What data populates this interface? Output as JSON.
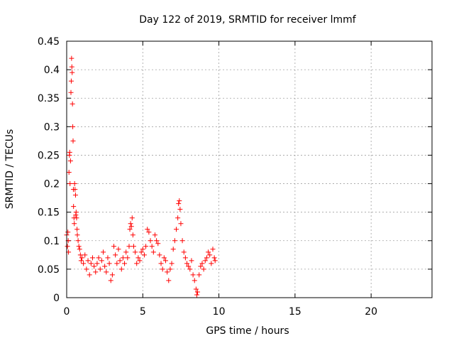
{
  "chart_data": {
    "type": "scatter",
    "title": "Day 122 of 2019, SRMTID for receiver lmmf",
    "xlabel": "GPS time / hours",
    "ylabel": "SRMTID / TECUs",
    "xlim": [
      0,
      24
    ],
    "ylim": [
      0,
      0.45
    ],
    "xticks": [
      0,
      5,
      10,
      15,
      20
    ],
    "xtick_labels": [
      "0",
      "5",
      "10",
      "15",
      "20"
    ],
    "yticks": [
      0,
      0.05,
      0.1,
      0.15,
      0.2,
      0.25,
      0.3,
      0.35,
      0.4,
      0.45
    ],
    "ytick_labels": [
      "0",
      "0.05",
      "0.1",
      "0.15",
      "0.2",
      "0.25",
      "0.3",
      "0.35",
      "0.4",
      "0.45"
    ],
    "grid": true,
    "marker": "+",
    "color": "#ff0000",
    "series": [
      {
        "name": "SRMTID",
        "points": [
          [
            0.0,
            0.11
          ],
          [
            0.05,
            0.09
          ],
          [
            0.08,
            0.115
          ],
          [
            0.1,
            0.1
          ],
          [
            0.12,
            0.08
          ],
          [
            0.15,
            0.22
          ],
          [
            0.18,
            0.25
          ],
          [
            0.2,
            0.255
          ],
          [
            0.22,
            0.2
          ],
          [
            0.25,
            0.24
          ],
          [
            0.28,
            0.36
          ],
          [
            0.3,
            0.38
          ],
          [
            0.32,
            0.42
          ],
          [
            0.34,
            0.405
          ],
          [
            0.36,
            0.395
          ],
          [
            0.38,
            0.34
          ],
          [
            0.4,
            0.3
          ],
          [
            0.42,
            0.275
          ],
          [
            0.44,
            0.19
          ],
          [
            0.45,
            0.16
          ],
          [
            0.48,
            0.14
          ],
          [
            0.5,
            0.13
          ],
          [
            0.52,
            0.2
          ],
          [
            0.55,
            0.19
          ],
          [
            0.58,
            0.18
          ],
          [
            0.6,
            0.145
          ],
          [
            0.62,
            0.15
          ],
          [
            0.65,
            0.14
          ],
          [
            0.68,
            0.12
          ],
          [
            0.7,
            0.11
          ],
          [
            0.75,
            0.1
          ],
          [
            0.8,
            0.09
          ],
          [
            0.85,
            0.085
          ],
          [
            0.9,
            0.075
          ],
          [
            0.95,
            0.065
          ],
          [
            1.0,
            0.07
          ],
          [
            1.1,
            0.06
          ],
          [
            1.2,
            0.075
          ],
          [
            1.3,
            0.05
          ],
          [
            1.4,
            0.065
          ],
          [
            1.5,
            0.04
          ],
          [
            1.6,
            0.06
          ],
          [
            1.7,
            0.07
          ],
          [
            1.8,
            0.055
          ],
          [
            1.9,
            0.045
          ],
          [
            2.0,
            0.06
          ],
          [
            2.1,
            0.07
          ],
          [
            2.2,
            0.05
          ],
          [
            2.3,
            0.065
          ],
          [
            2.4,
            0.08
          ],
          [
            2.5,
            0.055
          ],
          [
            2.6,
            0.045
          ],
          [
            2.7,
            0.07
          ],
          [
            2.8,
            0.06
          ],
          [
            2.9,
            0.03
          ],
          [
            3.0,
            0.04
          ],
          [
            3.1,
            0.09
          ],
          [
            3.2,
            0.075
          ],
          [
            3.3,
            0.06
          ],
          [
            3.4,
            0.085
          ],
          [
            3.5,
            0.065
          ],
          [
            3.6,
            0.05
          ],
          [
            3.7,
            0.07
          ],
          [
            3.8,
            0.06
          ],
          [
            3.9,
            0.08
          ],
          [
            4.0,
            0.07
          ],
          [
            4.1,
            0.09
          ],
          [
            4.15,
            0.12
          ],
          [
            4.2,
            0.13
          ],
          [
            4.25,
            0.125
          ],
          [
            4.3,
            0.14
          ],
          [
            4.35,
            0.11
          ],
          [
            4.4,
            0.09
          ],
          [
            4.5,
            0.08
          ],
          [
            4.6,
            0.06
          ],
          [
            4.7,
            0.07
          ],
          [
            4.8,
            0.065
          ],
          [
            4.9,
            0.08
          ],
          [
            5.0,
            0.085
          ],
          [
            5.1,
            0.075
          ],
          [
            5.2,
            0.09
          ],
          [
            5.3,
            0.12
          ],
          [
            5.4,
            0.115
          ],
          [
            5.5,
            0.1
          ],
          [
            5.6,
            0.09
          ],
          [
            5.7,
            0.08
          ],
          [
            5.8,
            0.11
          ],
          [
            5.9,
            0.1
          ],
          [
            6.0,
            0.095
          ],
          [
            6.1,
            0.075
          ],
          [
            6.2,
            0.06
          ],
          [
            6.3,
            0.05
          ],
          [
            6.4,
            0.07
          ],
          [
            6.5,
            0.065
          ],
          [
            6.6,
            0.045
          ],
          [
            6.7,
            0.03
          ],
          [
            6.8,
            0.05
          ],
          [
            6.9,
            0.06
          ],
          [
            7.0,
            0.085
          ],
          [
            7.1,
            0.1
          ],
          [
            7.2,
            0.12
          ],
          [
            7.3,
            0.14
          ],
          [
            7.35,
            0.165
          ],
          [
            7.4,
            0.17
          ],
          [
            7.45,
            0.155
          ],
          [
            7.5,
            0.13
          ],
          [
            7.6,
            0.1
          ],
          [
            7.7,
            0.08
          ],
          [
            7.8,
            0.07
          ],
          [
            7.9,
            0.06
          ],
          [
            8.0,
            0.055
          ],
          [
            8.1,
            0.05
          ],
          [
            8.2,
            0.065
          ],
          [
            8.3,
            0.04
          ],
          [
            8.4,
            0.03
          ],
          [
            8.5,
            0.015
          ],
          [
            8.55,
            0.005
          ],
          [
            8.6,
            0.01
          ],
          [
            8.7,
            0.04
          ],
          [
            8.8,
            0.055
          ],
          [
            8.9,
            0.06
          ],
          [
            9.0,
            0.05
          ],
          [
            9.1,
            0.065
          ],
          [
            9.2,
            0.07
          ],
          [
            9.3,
            0.08
          ],
          [
            9.4,
            0.075
          ],
          [
            9.5,
            0.06
          ],
          [
            9.6,
            0.085
          ],
          [
            9.7,
            0.07
          ],
          [
            9.75,
            0.065
          ]
        ]
      }
    ]
  }
}
